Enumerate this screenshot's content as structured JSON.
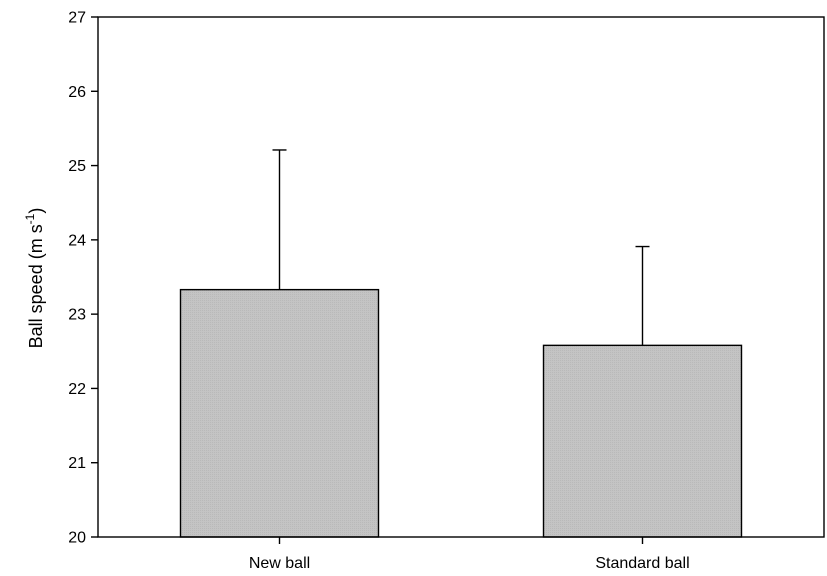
{
  "chart_data": {
    "type": "bar",
    "categories": [
      "New ball",
      "Standard ball"
    ],
    "values": [
      23.33,
      22.58
    ],
    "error_plus": [
      1.88,
      1.33
    ],
    "ylim": [
      20,
      27
    ],
    "yticks": [
      "20",
      "21",
      "22",
      "23",
      "24",
      "25",
      "26",
      "27"
    ],
    "ylabel": {
      "main": "Ball speed (m s",
      "sup": "-1",
      "close": ")"
    },
    "xlabel": "",
    "title": "",
    "grid": false,
    "legend": "none",
    "colors": {
      "bar_fill": "#c4c4c4",
      "bar_stroke": "#000000",
      "axis": "#000000",
      "error_bar": "#000000"
    }
  }
}
